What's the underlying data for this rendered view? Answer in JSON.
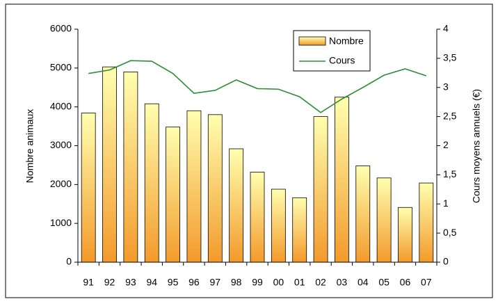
{
  "chart_data": {
    "type": "bar-line",
    "categories": [
      "91",
      "92",
      "93",
      "94",
      "95",
      "96",
      "97",
      "98",
      "99",
      "00",
      "01",
      "02",
      "03",
      "04",
      "05",
      "06",
      "07"
    ],
    "series": [
      {
        "name": "Nombre",
        "color": "#f39a2b",
        "values": [
          3840,
          5030,
          4900,
          4080,
          3480,
          3900,
          3800,
          2920,
          2320,
          1880,
          1660,
          3750,
          4250,
          2480,
          2170,
          1410,
          2040
        ]
      },
      {
        "name": "Cours",
        "color": "#2e8b3a",
        "axis": "y2",
        "values": [
          3.24,
          3.3,
          3.46,
          3.45,
          3.24,
          2.9,
          2.95,
          3.13,
          2.98,
          2.97,
          2.84,
          2.57,
          2.8,
          3.0,
          3.21,
          3.32,
          3.2
        ]
      }
    ],
    "ylabel": "Nombre animaux",
    "y2label": "Cours moyens annuels (€)",
    "ylim": [
      0,
      6000
    ],
    "yticks": [
      0,
      1000,
      2000,
      3000,
      4000,
      5000,
      6000
    ],
    "y2lim": [
      0,
      4
    ],
    "y2ticks": [
      0,
      {
        "value": 0.5,
        "label": "0,5"
      },
      1,
      {
        "value": 1.5,
        "label": "1,5"
      },
      2,
      {
        "value": 2.5,
        "label": "2,5"
      },
      3,
      {
        "value": 3.5,
        "label": "3,5"
      },
      4
    ]
  }
}
